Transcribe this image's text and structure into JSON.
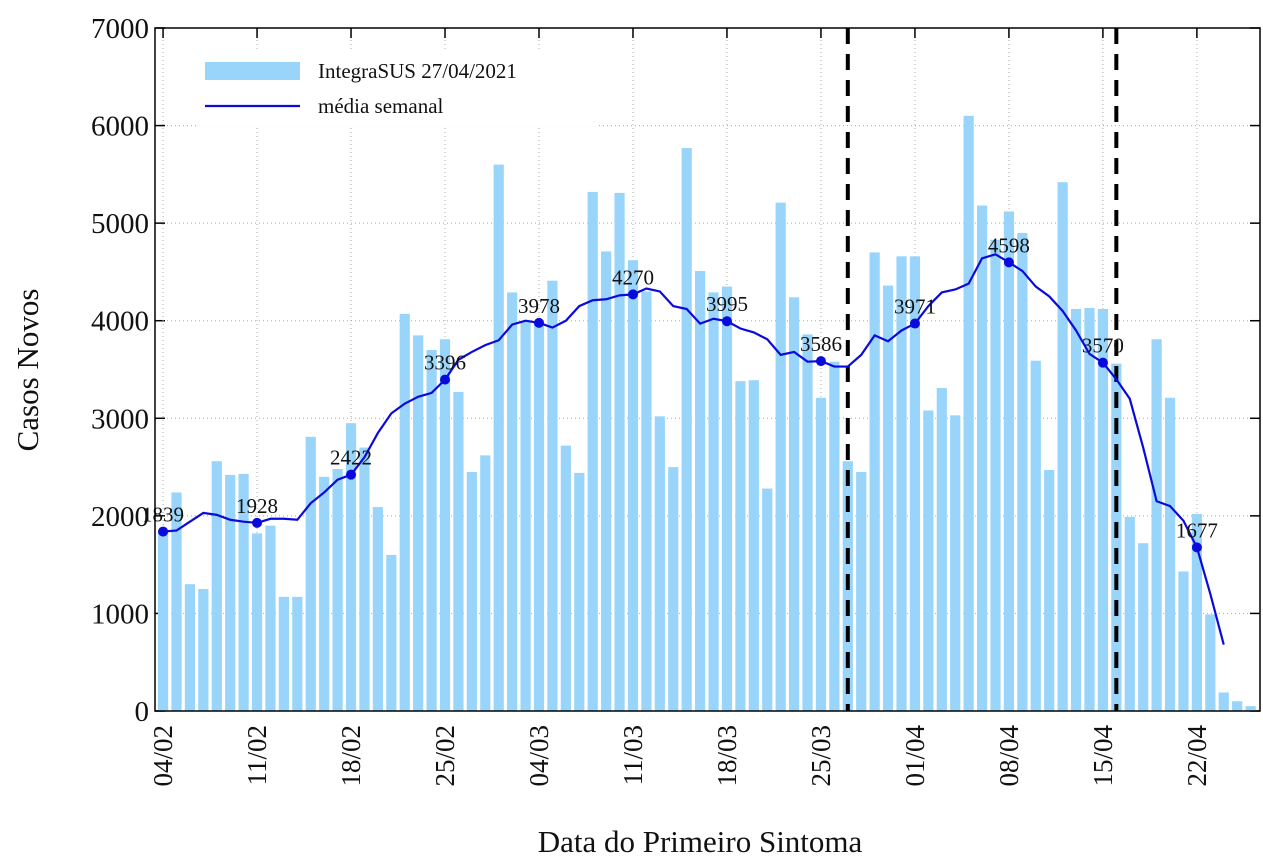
{
  "chart_data": {
    "type": "bar_line",
    "xlabel": "Data do Primeiro Sintoma",
    "ylabel": "Casos Novos",
    "categories": [
      "04/02",
      null,
      null,
      null,
      null,
      null,
      null,
      "11/02",
      null,
      null,
      null,
      null,
      null,
      null,
      "18/02",
      null,
      null,
      null,
      null,
      null,
      null,
      "25/02",
      null,
      null,
      null,
      null,
      null,
      null,
      "04/03",
      null,
      null,
      null,
      null,
      null,
      null,
      "11/03",
      null,
      null,
      null,
      null,
      null,
      null,
      "18/03",
      null,
      null,
      null,
      null,
      null,
      null,
      "25/03",
      null,
      null,
      null,
      null,
      null,
      null,
      "01/04",
      null,
      null,
      null,
      null,
      null,
      null,
      "08/04",
      null,
      null,
      null,
      null,
      null,
      null,
      "15/04",
      null,
      null,
      null,
      null,
      null,
      null,
      "22/04",
      null,
      null,
      null,
      null
    ],
    "xlim": [
      -0.6,
      81.7
    ],
    "ylim": [
      0,
      7000
    ],
    "yticks": [
      0,
      1000,
      2000,
      3000,
      4000,
      5000,
      6000,
      7000
    ],
    "grid": true,
    "legend": "upper left",
    "vertical_lines": [
      51,
      71
    ],
    "series": [
      {
        "name": "IntegraSUS 27/04/2021",
        "kind": "bar",
        "color": "#99d5fa",
        "values": [
          1840,
          2240,
          1300,
          1250,
          2560,
          2420,
          2430,
          1820,
          1900,
          1170,
          1170,
          2810,
          2400,
          2480,
          2950,
          2700,
          2090,
          1600,
          4070,
          3850,
          3700,
          3810,
          3270,
          2450,
          2620,
          5600,
          4290,
          4000,
          3980,
          4410,
          2720,
          2440,
          5320,
          4710,
          5310,
          4620,
          4300,
          3020,
          2500,
          5770,
          4510,
          4290,
          4350,
          3380,
          3390,
          2280,
          5210,
          4240,
          3860,
          3210,
          3580,
          2560,
          2450,
          4700,
          4360,
          4660,
          4660,
          3080,
          3310,
          3030,
          6100,
          5180,
          4830,
          5120,
          4900,
          3590,
          2470,
          5420,
          4120,
          4130,
          4120,
          3560,
          1990,
          1720,
          3810,
          3210,
          1430,
          2020,
          990,
          190,
          100,
          50
        ]
      },
      {
        "name": "média semanal",
        "kind": "line",
        "color": "#0a0adc",
        "marker_indices": [
          0,
          7,
          14,
          21,
          28,
          35,
          42,
          49,
          56,
          63,
          70,
          77
        ],
        "values": [
          1839,
          1850,
          1940,
          2030,
          2010,
          1960,
          1940,
          1928,
          1970,
          1970,
          1960,
          2130,
          2240,
          2370,
          2422,
          2600,
          2850,
          3050,
          3150,
          3220,
          3260,
          3396,
          3600,
          3680,
          3750,
          3800,
          3960,
          4000,
          3978,
          3930,
          4000,
          4150,
          4210,
          4220,
          4260,
          4270,
          4330,
          4300,
          4150,
          4120,
          3970,
          4020,
          3995,
          3920,
          3880,
          3810,
          3650,
          3680,
          3580,
          3586,
          3530,
          3530,
          3650,
          3850,
          3790,
          3900,
          3971,
          4150,
          4290,
          4320,
          4380,
          4640,
          4680,
          4598,
          4510,
          4350,
          4250,
          4100,
          3900,
          3660,
          3570,
          3400,
          3200,
          2700,
          2150,
          2100,
          1950,
          1677,
          1200,
          680,
          null,
          null
        ]
      }
    ]
  }
}
